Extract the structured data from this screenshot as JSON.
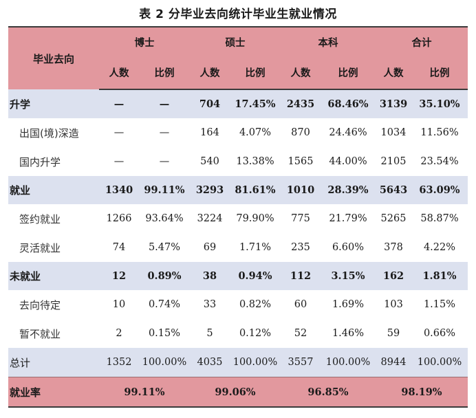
{
  "title": "表 2  分毕业去向统计毕业生就业情况",
  "header": {
    "row_label": "毕业去向",
    "groups": [
      "博士",
      "硕士",
      "本科",
      "合计"
    ],
    "sub": [
      "人数",
      "比例",
      "人数",
      "比例",
      "人数",
      "比例",
      "人数",
      "比例"
    ]
  },
  "rows": [
    {
      "label": "升学",
      "values": [
        "—",
        "—",
        "704",
        "17.45%",
        "2435",
        "68.46%",
        "3139",
        "35.10%"
      ]
    },
    {
      "label": "出国(境)深造",
      "values": [
        "—",
        "—",
        "164",
        "4.07%",
        "870",
        "24.46%",
        "1034",
        "11.56%"
      ]
    },
    {
      "label": "国内升学",
      "values": [
        "—",
        "—",
        "540",
        "13.38%",
        "1565",
        "44.00%",
        "2105",
        "23.54%"
      ]
    },
    {
      "label": "就业",
      "values": [
        "1340",
        "99.11%",
        "3293",
        "81.61%",
        "1010",
        "28.39%",
        "5643",
        "63.09%"
      ]
    },
    {
      "label": "签约就业",
      "values": [
        "1266",
        "93.64%",
        "3224",
        "79.90%",
        "775",
        "21.79%",
        "5265",
        "58.87%"
      ]
    },
    {
      "label": "灵活就业",
      "values": [
        "74",
        "5.47%",
        "69",
        "1.71%",
        "235",
        "6.60%",
        "378",
        "4.22%"
      ]
    },
    {
      "label": "未就业",
      "values": [
        "12",
        "0.89%",
        "38",
        "0.94%",
        "112",
        "3.15%",
        "162",
        "1.81%"
      ]
    },
    {
      "label": "去向待定",
      "values": [
        "10",
        "0.74%",
        "33",
        "0.82%",
        "60",
        "1.69%",
        "103",
        "1.15%"
      ]
    },
    {
      "label": "暂不就业",
      "values": [
        "2",
        "0.15%",
        "5",
        "0.12%",
        "52",
        "1.46%",
        "59",
        "0.66%"
      ]
    },
    {
      "label": "总计",
      "values": [
        "1352",
        "100.00%",
        "4035",
        "100.00%",
        "3557",
        "100.00%",
        "8944",
        "100.00%"
      ]
    }
  ],
  "rate": {
    "label": "就业率",
    "values": [
      "99.11%",
      "99.06%",
      "96.85%",
      "98.19%"
    ]
  }
}
